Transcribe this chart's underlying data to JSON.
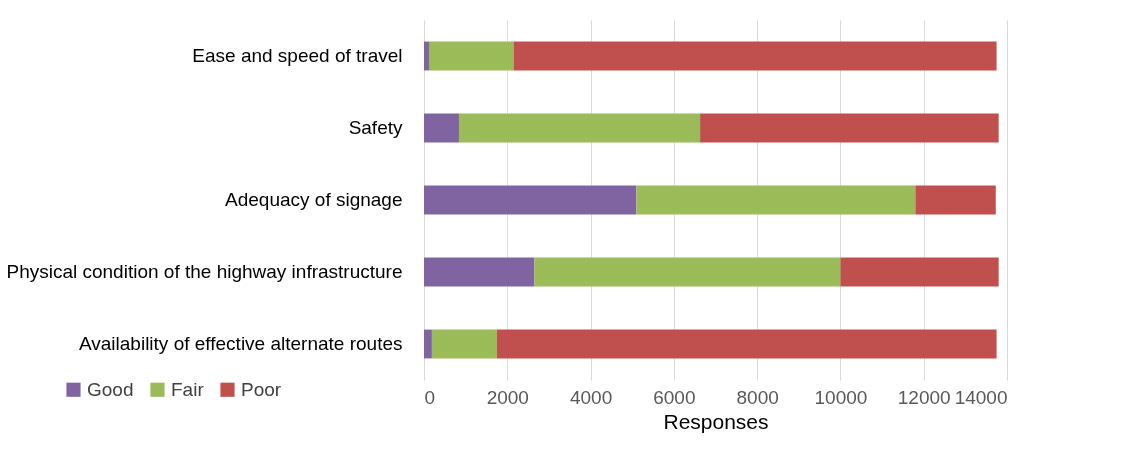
{
  "chart_data": {
    "type": "bar",
    "orientation": "horizontal",
    "stacked": true,
    "xlabel": "Responses",
    "categories": [
      "Ease and speed of travel",
      "Safety",
      "Adequacy of signage",
      "Physical condition of the highway infrastructure",
      "Availability of effective alternate routes"
    ],
    "series": [
      {
        "name": "Good",
        "color": "#8064a2",
        "values": [
          120,
          840,
          5100,
          2650,
          190
        ]
      },
      {
        "name": "Fair",
        "color": "#9bbb59",
        "values": [
          2030,
          5790,
          6700,
          7350,
          1560
        ]
      },
      {
        "name": "Poor",
        "color": "#c0504d",
        "values": [
          11600,
          7170,
          1930,
          3800,
          12000
        ]
      }
    ],
    "xlim": [
      0,
      14000
    ],
    "xticks": [
      0,
      2000,
      4000,
      6000,
      8000,
      10000,
      12000,
      14000
    ],
    "grid": "x",
    "legend": "bottom left"
  }
}
